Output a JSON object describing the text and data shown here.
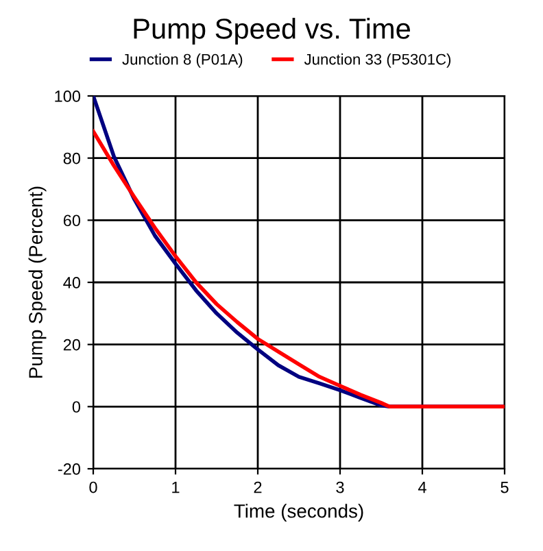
{
  "chart_data": {
    "type": "line",
    "title": "Pump Speed vs. Time",
    "xlabel": "Time (seconds)",
    "ylabel": "Pump Speed (Percent)",
    "xlim": [
      0,
      5
    ],
    "xticks": [
      0,
      1,
      2,
      3,
      4,
      5
    ],
    "ylim": [
      -20,
      100
    ],
    "yticks": [
      -20,
      0,
      20,
      40,
      60,
      80,
      100
    ],
    "grid": true,
    "legend": "top",
    "marker": "none",
    "line_style": "solid",
    "series": [
      {
        "name": "Junction 8 (P01A)",
        "color": "#000080",
        "x": [
          0,
          0.25,
          0.5,
          0.75,
          1,
          1.25,
          1.5,
          1.75,
          2,
          2.25,
          2.5,
          2.75,
          3,
          3.25,
          3.5,
          3.6,
          5
        ],
        "values": [
          100,
          80.6,
          66.7,
          55,
          46,
          37.4,
          30,
          23.8,
          18.4,
          13.3,
          9.6,
          7.5,
          5.3,
          2.8,
          0.4,
          0,
          0
        ]
      },
      {
        "name": "Junction 33 (P5301C)",
        "color": "#ff0000",
        "x": [
          0,
          0.25,
          0.5,
          0.75,
          1,
          1.25,
          1.5,
          1.75,
          2,
          2.25,
          2.5,
          2.75,
          3,
          3.25,
          3.5,
          3.6,
          5
        ],
        "values": [
          88.6,
          77.6,
          67.4,
          57.5,
          48.4,
          40,
          33,
          27.2,
          21.8,
          17.7,
          13.6,
          9.6,
          6.7,
          3.8,
          1.2,
          0,
          0
        ]
      }
    ]
  }
}
